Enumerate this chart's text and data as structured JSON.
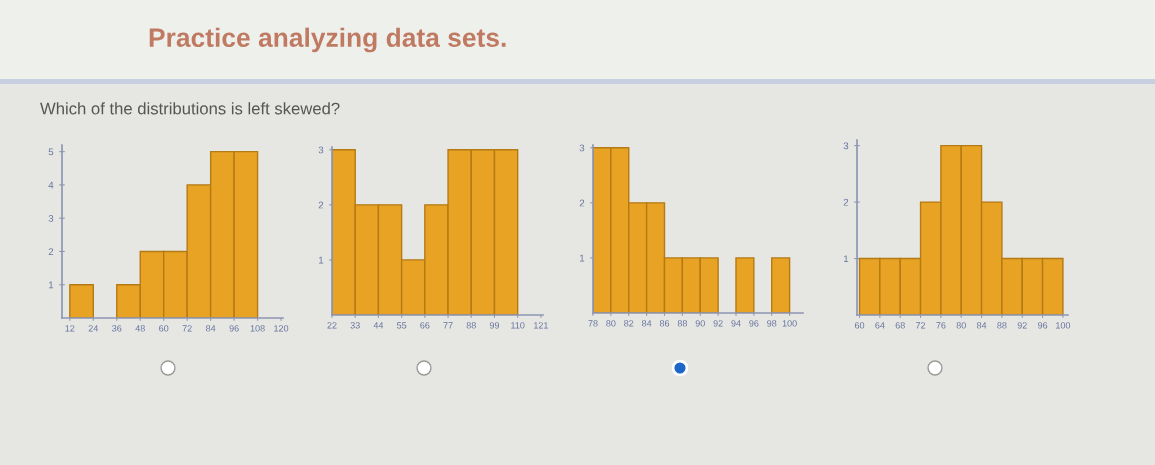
{
  "chart_data": [
    {
      "type": "histogram",
      "title": "Practice analyzing data sets.",
      "subtitle": "Which of the distributions is left skewed?",
      "bins": [
        12,
        24,
        36,
        48,
        60,
        72,
        84,
        96,
        108,
        120
      ],
      "values": [
        1,
        0,
        1,
        2,
        2,
        4,
        5,
        5,
        0
      ],
      "color": "#e9a324",
      "xlim": [
        8,
        121
      ],
      "ylim": [
        0,
        5.2
      ],
      "xticks": [
        12,
        24,
        36,
        48,
        60,
        72,
        84,
        96,
        108,
        120
      ],
      "yticks": [
        1,
        2,
        3,
        4,
        5
      ]
    },
    {
      "type": "histogram",
      "bins": [
        22,
        33,
        44,
        55,
        66,
        77,
        88,
        99,
        110,
        121
      ],
      "values": [
        3,
        2,
        2,
        1,
        2,
        3,
        3,
        3,
        0
      ],
      "color": "#e9a324",
      "xlim": [
        22,
        122
      ],
      "ylim": [
        0,
        3.05
      ],
      "xticks": [
        22,
        33,
        44,
        55,
        66,
        77,
        88,
        99,
        110,
        121
      ],
      "yticks": [
        1,
        2,
        3
      ]
    },
    {
      "type": "histogram",
      "bins": [
        78,
        80,
        82,
        84,
        86,
        88,
        90,
        92,
        94,
        96,
        98,
        100
      ],
      "values": [
        3,
        3,
        2,
        2,
        1,
        1,
        1,
        0,
        1,
        0,
        1
      ],
      "color": "#e9a324",
      "xlim": [
        78,
        101.5
      ],
      "ylim": [
        0,
        3.05
      ],
      "xticks": [
        78,
        80,
        82,
        84,
        86,
        88,
        90,
        92,
        94,
        96,
        98,
        100
      ],
      "yticks": [
        1,
        2,
        3
      ]
    },
    {
      "type": "histogram",
      "bins": [
        60,
        64,
        68,
        72,
        76,
        80,
        84,
        88,
        92,
        96,
        100
      ],
      "values": [
        1,
        1,
        1,
        2,
        3,
        3,
        2,
        1,
        1,
        1
      ],
      "color": "#e9a324",
      "xlim": [
        59.5,
        101
      ],
      "ylim": [
        0,
        3.1
      ],
      "xticks": [
        60,
        64,
        68,
        72,
        76,
        80,
        84,
        88,
        92,
        96,
        100
      ],
      "yticks": [
        1,
        2,
        3
      ]
    }
  ]
}
